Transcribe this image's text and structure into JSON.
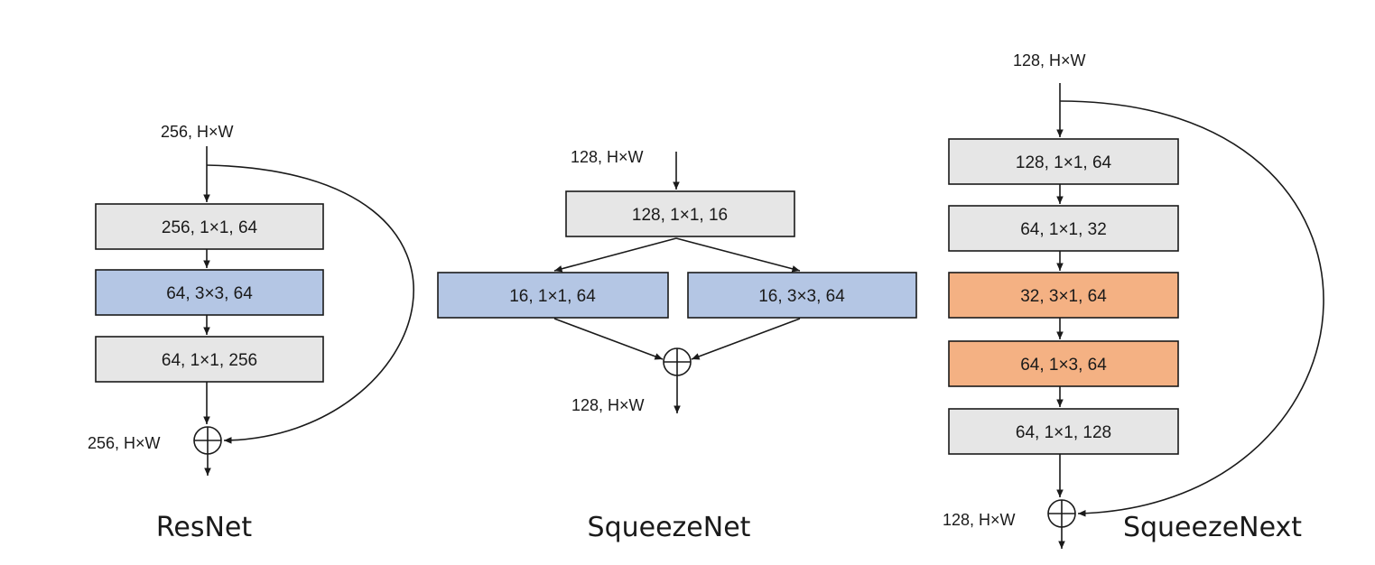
{
  "colors": {
    "gray": "#e6e6e6",
    "blue": "#b4c6e4",
    "orange": "#f4b183",
    "stroke": "#1a1a1a"
  },
  "resnet": {
    "caption": "ResNet",
    "input_label": "256, H×W",
    "output_label": "256, H×W",
    "blocks": [
      {
        "label": "256, 1×1, 64",
        "color": "gray"
      },
      {
        "label": "64, 3×3, 64",
        "color": "blue"
      },
      {
        "label": "64, 1×1, 256",
        "color": "gray"
      }
    ]
  },
  "squeezenet": {
    "caption": "SqueezeNet",
    "input_label": "128, H×W",
    "output_label": "128, H×W",
    "squeeze": {
      "label": "128, 1×1, 16",
      "color": "gray"
    },
    "expand_left": {
      "label": "16, 1×1, 64",
      "color": "blue"
    },
    "expand_right": {
      "label": "16, 3×3, 64",
      "color": "blue"
    }
  },
  "squeezenext": {
    "caption": "SqueezeNext",
    "input_label": "128, H×W",
    "output_label": "128, H×W",
    "blocks": [
      {
        "label": "128, 1×1, 64",
        "color": "gray"
      },
      {
        "label": "64, 1×1, 32",
        "color": "gray"
      },
      {
        "label": "32, 3×1, 64",
        "color": "orange"
      },
      {
        "label": "64, 1×3, 64",
        "color": "orange"
      },
      {
        "label": "64, 1×1, 128",
        "color": "gray"
      }
    ]
  }
}
